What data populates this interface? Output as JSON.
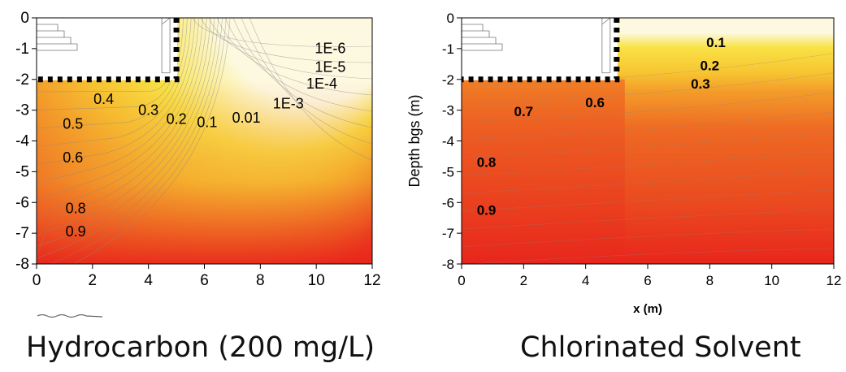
{
  "captions": {
    "left": "Hydrocarbon (200 mg/L)",
    "right": "Chlorinated Solvent"
  },
  "colors": {
    "pale": "#fdf9e0",
    "yellow": "#f9e246",
    "gold": "#f7c632",
    "orange": "#f39c2a",
    "dark_orange": "#ee6a23",
    "red": "#e8261c",
    "contour_line": "#888888"
  },
  "chart_data": [
    {
      "type": "contour",
      "title": "",
      "subtitle": "",
      "caption": "Hydrocarbon (200 mg/L)",
      "xlabel": "",
      "ylabel": "",
      "xlim": [
        0,
        12
      ],
      "ylim": [
        -8,
        0
      ],
      "x_ticks": [
        "0",
        "2",
        "4",
        "6",
        "8",
        "10",
        "12"
      ],
      "y_ticks": [
        "0",
        "-1",
        "-2",
        "-3",
        "-4",
        "-5",
        "-6",
        "-7",
        "-8"
      ],
      "grid": false,
      "basement": {
        "x": [
          0,
          5
        ],
        "depth_bottom": -2
      },
      "contour_labels": [
        {
          "text": "1E-6",
          "x": 10.5,
          "y": -1.15
        },
        {
          "text": "1E-5",
          "x": 10.5,
          "y": -1.75
        },
        {
          "text": "1E-4",
          "x": 10.2,
          "y": -2.3
        },
        {
          "text": "1E-3",
          "x": 9.0,
          "y": -2.95
        },
        {
          "text": "0.01",
          "x": 7.5,
          "y": -3.4
        },
        {
          "text": "0.1",
          "x": 6.1,
          "y": -3.55
        },
        {
          "text": "0.2",
          "x": 5.0,
          "y": -3.45
        },
        {
          "text": "0.3",
          "x": 4.0,
          "y": -3.15
        },
        {
          "text": "0.4",
          "x": 2.4,
          "y": -2.8
        },
        {
          "text": "0.5",
          "x": 1.3,
          "y": -3.6
        },
        {
          "text": "0.6",
          "x": 1.3,
          "y": -4.7
        },
        {
          "text": "0.8",
          "x": 1.4,
          "y": -6.35
        },
        {
          "text": "0.9",
          "x": 1.4,
          "y": -7.1
        }
      ]
    },
    {
      "type": "contour",
      "title": "",
      "subtitle": "",
      "caption": "Chlorinated Solvent",
      "xlabel": "x (m)",
      "ylabel": "Depth bgs (m)",
      "xlim": [
        0,
        12
      ],
      "ylim": [
        -8,
        0
      ],
      "x_ticks": [
        "0",
        "2",
        "4",
        "6",
        "8",
        "10",
        "12"
      ],
      "y_ticks": [
        "0",
        "-1",
        "-2",
        "-3",
        "-4",
        "-5",
        "-6",
        "-7",
        "-8"
      ],
      "grid": false,
      "basement": {
        "x": [
          0,
          5
        ],
        "depth_bottom": -2
      },
      "contour_labels": [
        {
          "text": "0.1",
          "x": 8.2,
          "y": -0.95
        },
        {
          "text": "0.2",
          "x": 8.0,
          "y": -1.7
        },
        {
          "text": "0.3",
          "x": 7.7,
          "y": -2.3
        },
        {
          "text": "0.6",
          "x": 4.3,
          "y": -2.9
        },
        {
          "text": "0.7",
          "x": 2.0,
          "y": -3.2
        },
        {
          "text": "0.8",
          "x": 0.8,
          "y": -4.85
        },
        {
          "text": "0.9",
          "x": 0.8,
          "y": -6.4
        }
      ]
    }
  ]
}
